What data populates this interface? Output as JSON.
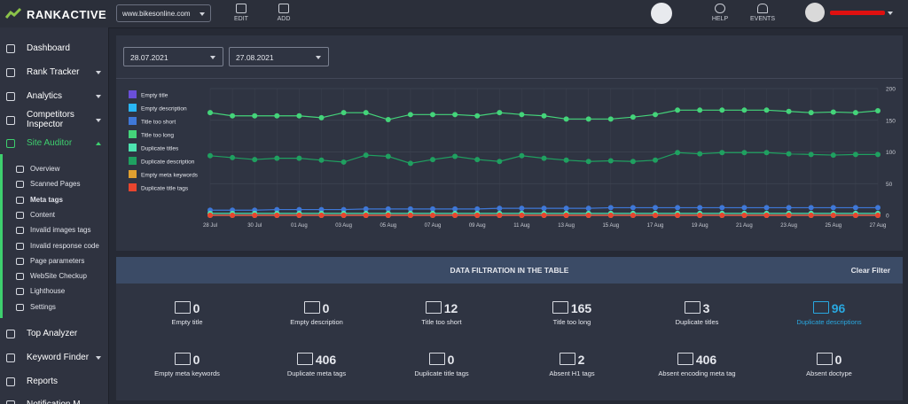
{
  "header": {
    "logo": "RANKACTIVE",
    "domain": "www.bikesonline.com",
    "edit": "EDIT",
    "add": "ADD",
    "help": "HELP",
    "events": "EVENTS"
  },
  "sidebar": {
    "top": [
      "Dashboard",
      "Rank Tracker",
      "Analytics",
      "Competitors Inspector",
      "Site Auditor"
    ],
    "sub": [
      "Overview",
      "Scanned Pages",
      "Meta tags",
      "Content",
      "Invalid images tags",
      "Invalid response code",
      "Page parameters",
      "WebSite Checkup",
      "Lighthouse",
      "Settings"
    ],
    "bottom": [
      "Top Analyzer",
      "Keyword Finder",
      "Reports",
      "Notification M"
    ]
  },
  "filters": {
    "date_from": "28.07.2021",
    "date_to": "27.08.2021"
  },
  "chart_data": {
    "type": "line",
    "categories": [
      "28 Jul",
      null,
      "30 Jul",
      null,
      "01 Aug",
      null,
      "03 Aug",
      null,
      "05 Aug",
      null,
      "07 Aug",
      null,
      "09 Aug",
      null,
      "11 Aug",
      null,
      "13 Aug",
      null,
      "15 Aug",
      null,
      "17 Aug",
      null,
      "19 Aug",
      null,
      "21 Aug",
      null,
      "23 Aug",
      null,
      "25 Aug",
      null,
      "27 Aug"
    ],
    "ylim": [
      0,
      200
    ],
    "yticks": [
      0,
      50,
      100,
      150,
      200
    ],
    "grid": true,
    "series": [
      {
        "name": "Empty title",
        "color": "#6a4fd8",
        "values": [
          0,
          0,
          0,
          0,
          0,
          0,
          0,
          0,
          0,
          0,
          0,
          0,
          0,
          0,
          0,
          0,
          0,
          0,
          0,
          0,
          0,
          0,
          0,
          0,
          0,
          0,
          0,
          0,
          0,
          0,
          0
        ]
      },
      {
        "name": "Empty description",
        "color": "#29b6f6",
        "values": [
          0,
          0,
          0,
          0,
          0,
          0,
          0,
          0,
          0,
          0,
          0,
          0,
          0,
          0,
          0,
          0,
          0,
          0,
          0,
          0,
          0,
          0,
          0,
          0,
          0,
          0,
          0,
          0,
          0,
          0,
          0
        ]
      },
      {
        "name": "Title too short",
        "color": "#3f78d8",
        "values": [
          8,
          8,
          8,
          9,
          9,
          9,
          9,
          10,
          10,
          10,
          10,
          10,
          10,
          11,
          11,
          11,
          11,
          11,
          12,
          12,
          12,
          12,
          12,
          12,
          12,
          12,
          12,
          12,
          12,
          12,
          12
        ]
      },
      {
        "name": "Title too long",
        "color": "#44d47a",
        "values": [
          162,
          157,
          157,
          157,
          157,
          154,
          162,
          162,
          151,
          159,
          159,
          159,
          157,
          162,
          159,
          157,
          152,
          152,
          152,
          155,
          159,
          166,
          166,
          166,
          166,
          166,
          164,
          162,
          163,
          162,
          165
        ]
      },
      {
        "name": "Duplicate titles",
        "color": "#4de3b0",
        "values": [
          3,
          3,
          3,
          3,
          3,
          3,
          3,
          3,
          3,
          3,
          3,
          3,
          3,
          3,
          3,
          3,
          3,
          3,
          3,
          3,
          3,
          3,
          3,
          3,
          3,
          3,
          3,
          3,
          3,
          3,
          3
        ]
      },
      {
        "name": "Duplicate description",
        "color": "#1fa060",
        "values": [
          94,
          91,
          88,
          90,
          90,
          87,
          84,
          95,
          93,
          82,
          88,
          93,
          88,
          85,
          94,
          90,
          87,
          85,
          86,
          85,
          87,
          99,
          97,
          99,
          99,
          99,
          97,
          96,
          95,
          96,
          96
        ]
      },
      {
        "name": "Empty meta keywords",
        "color": "#e0a030",
        "values": [
          0,
          0,
          0,
          0,
          0,
          0,
          0,
          0,
          0,
          0,
          0,
          0,
          0,
          0,
          0,
          0,
          0,
          0,
          0,
          0,
          0,
          0,
          0,
          0,
          0,
          0,
          0,
          0,
          0,
          0,
          0
        ]
      },
      {
        "name": "Duplicate title tags",
        "color": "#e8452e",
        "values": [
          0,
          0,
          0,
          0,
          0,
          0,
          0,
          0,
          0,
          0,
          0,
          0,
          0,
          0,
          0,
          0,
          0,
          0,
          0,
          0,
          0,
          0,
          0,
          0,
          0,
          0,
          0,
          0,
          0,
          0,
          0
        ]
      }
    ]
  },
  "stats": {
    "title": "DATA FILTRATION IN THE TABLE",
    "clear": "Clear Filter",
    "items": [
      {
        "value": 0,
        "label": "Empty title"
      },
      {
        "value": 0,
        "label": "Empty description"
      },
      {
        "value": 12,
        "label": "Title too short"
      },
      {
        "value": 165,
        "label": "Title too long"
      },
      {
        "value": 3,
        "label": "Duplicate titles"
      },
      {
        "value": 96,
        "label": "Duplicate descriptions",
        "active": true
      },
      {
        "value": 0,
        "label": "Empty meta keywords"
      },
      {
        "value": 406,
        "label": "Duplicate meta tags"
      },
      {
        "value": 0,
        "label": "Duplicate title tags"
      },
      {
        "value": 2,
        "label": "Absent H1 tags"
      },
      {
        "value": 406,
        "label": "Absent encoding meta tag"
      },
      {
        "value": 0,
        "label": "Absent doctype"
      }
    ]
  }
}
